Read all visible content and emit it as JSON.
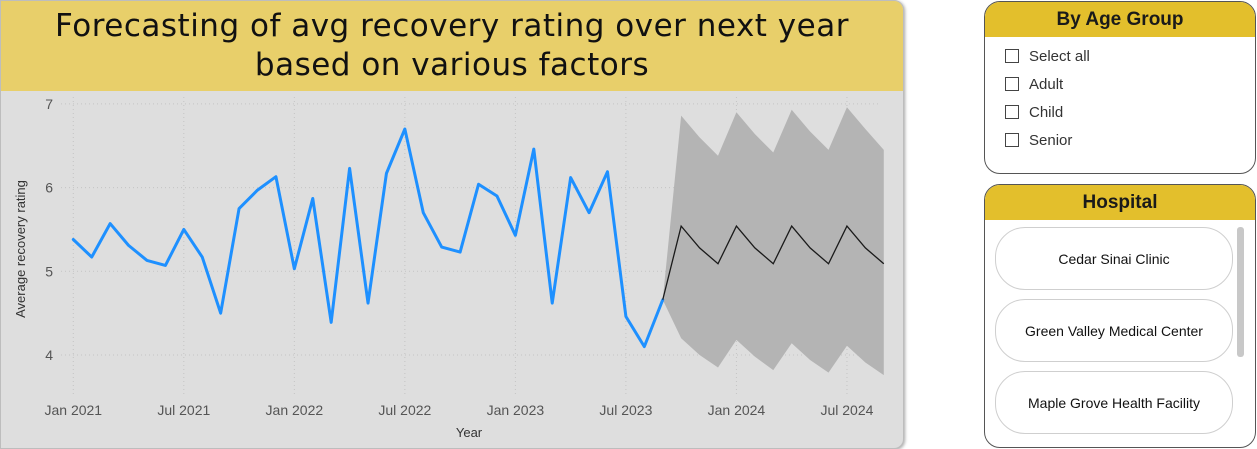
{
  "chart_panel": {
    "title": "Forecasting of avg recovery rating over next year based on various factors"
  },
  "chart_data": {
    "type": "line",
    "title": "Forecasting of avg recovery rating over next year based on various factors",
    "xlabel": "Year",
    "ylabel": "Average recovery rating",
    "ylim": [
      3.6,
      7.1
    ],
    "y_ticks": [
      "4",
      "5",
      "6",
      "7"
    ],
    "x_tick_labels": [
      "Jan 2021",
      "Jul 2021",
      "Jan 2022",
      "Jul 2022",
      "Jan 2023",
      "Jul 2023",
      "Jan 2024",
      "Jul 2024"
    ],
    "grid": "dotted",
    "x_start": "Jan 2021",
    "series": [
      {
        "color": "#1e90ff",
        "values": [
          5.38,
          5.17,
          5.57,
          5.31,
          5.13,
          5.07,
          5.5,
          5.17,
          4.5,
          5.75,
          5.97,
          6.13,
          5.03,
          5.87,
          4.39,
          6.23,
          4.62,
          6.17,
          6.7,
          5.7,
          5.29,
          5.23,
          6.04,
          5.9,
          5.43,
          6.46,
          4.62,
          6.12,
          5.7,
          6.19,
          4.46,
          4.1,
          4.66
        ]
      }
    ],
    "forecast": {
      "color": "#1a1a1a",
      "band_color": "#b4b4b4",
      "values": [
        5.54,
        5.28,
        5.09,
        5.54,
        5.28,
        5.09,
        5.54,
        5.28,
        5.09,
        5.54,
        5.28,
        5.09
      ],
      "upper": [
        6.86,
        6.6,
        6.38,
        6.9,
        6.64,
        6.42,
        6.93,
        6.67,
        6.45,
        6.96,
        6.7,
        6.45
      ],
      "lower": [
        4.2,
        4.0,
        3.85,
        4.18,
        3.98,
        3.82,
        4.14,
        3.94,
        3.79,
        4.11,
        3.91,
        3.76
      ]
    }
  },
  "age_slicer": {
    "title": "By Age Group",
    "items": [
      "Select all",
      "Adult",
      "Child",
      "Senior"
    ]
  },
  "hospital_slicer": {
    "title": "Hospital",
    "items": [
      "Cedar Sinai Clinic",
      "Green Valley Medical Center",
      "Maple Grove Health Facility"
    ]
  },
  "colors": {
    "title_bar": "#e8cf6a",
    "slicer_header": "#e3bf2c",
    "chart_bg": "#dedede"
  }
}
